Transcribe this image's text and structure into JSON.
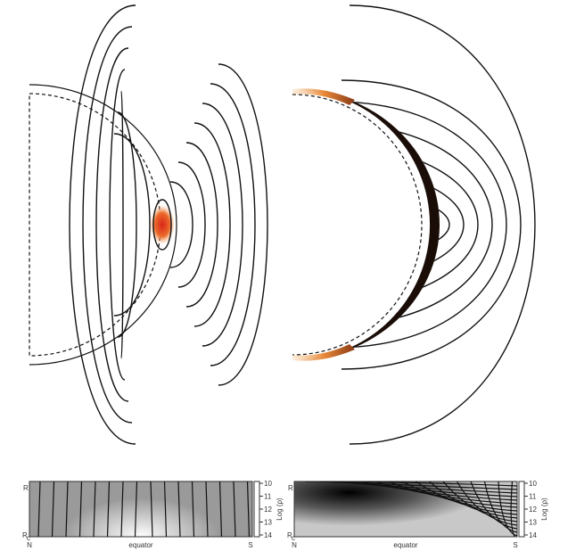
{
  "panels": [
    {
      "y_top": "R",
      "y_bottom": "R",
      "y_bottom_sub": "c",
      "x_labels": [
        "N",
        "equator",
        "S"
      ],
      "colorbar_ticks": [
        "10",
        "11",
        "12",
        "13",
        "14"
      ],
      "colorbar_title": "Log (ρ)"
    },
    {
      "y_top": "R",
      "y_bottom": "R",
      "y_bottom_sub": "c",
      "x_labels": [
        "N",
        "equator",
        "S"
      ],
      "colorbar_ticks": [
        "10",
        "11",
        "12",
        "13",
        "14"
      ],
      "colorbar_title": "Log (ρ)"
    }
  ]
}
